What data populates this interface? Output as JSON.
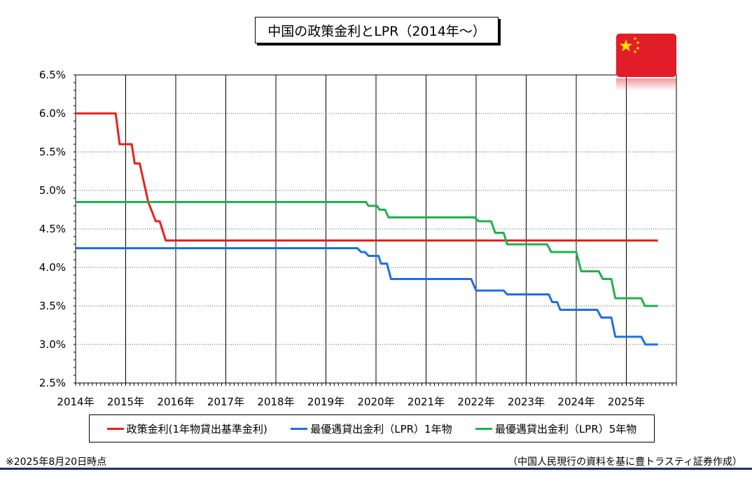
{
  "title": "中国の政策金利とLPR（2014年～）",
  "legend": [
    {
      "label": "政策金利(1年物貸出基準金利)",
      "color": "#e8211f"
    },
    {
      "label": "最優遇貸出金利（LPR）1年物",
      "color": "#1d6fe6"
    },
    {
      "label": "最優遇貸出金利（LPR）5年物",
      "color": "#1fb24e"
    }
  ],
  "note_left": "※2025年8月20日時点",
  "note_right": "（中国人民現行の資料を基に豊トラスティ証券作成）",
  "flag_icon": "china-flag-icon",
  "chart_data": {
    "type": "line",
    "title": "中国の政策金利とLPR（2014年～）",
    "xlabel": "",
    "ylabel": "",
    "xlim": [
      2014.0,
      2026.0
    ],
    "ylim": [
      2.5,
      6.5
    ],
    "y_ticks": [
      {
        "value": 6.5,
        "label": "6.5%"
      },
      {
        "value": 6.0,
        "label": "6.0%"
      },
      {
        "value": 5.5,
        "label": "5.5%"
      },
      {
        "value": 5.0,
        "label": "5.0%"
      },
      {
        "value": 4.5,
        "label": "4.5%"
      },
      {
        "value": 4.0,
        "label": "4.0%"
      },
      {
        "value": 3.5,
        "label": "3.5%"
      },
      {
        "value": 3.0,
        "label": "3.0%"
      },
      {
        "value": 2.5,
        "label": "2.5%"
      }
    ],
    "x_ticks": [
      {
        "value": 2014,
        "label": "2014年"
      },
      {
        "value": 2015,
        "label": "2015年"
      },
      {
        "value": 2016,
        "label": "2016年"
      },
      {
        "value": 2017,
        "label": "2017年"
      },
      {
        "value": 2018,
        "label": "2018年"
      },
      {
        "value": 2019,
        "label": "2019年"
      },
      {
        "value": 2020,
        "label": "2020年"
      },
      {
        "value": 2021,
        "label": "2021年"
      },
      {
        "value": 2022,
        "label": "2022年"
      },
      {
        "value": 2023,
        "label": "2023年"
      },
      {
        "value": 2024,
        "label": "2024年"
      },
      {
        "value": 2025,
        "label": "2025年"
      }
    ],
    "grid": true,
    "legend_position": "bottom",
    "series": [
      {
        "name": "政策金利(1年物貸出基準金利)",
        "color": "#e8211f",
        "points": [
          [
            2014.0,
            6.0
          ],
          [
            2014.8,
            6.0
          ],
          [
            2014.88,
            5.6
          ],
          [
            2015.12,
            5.6
          ],
          [
            2015.18,
            5.35
          ],
          [
            2015.28,
            5.35
          ],
          [
            2015.45,
            4.85
          ],
          [
            2015.6,
            4.6
          ],
          [
            2015.68,
            4.6
          ],
          [
            2015.8,
            4.35
          ],
          [
            2025.63,
            4.35
          ]
        ]
      },
      {
        "name": "最優遇貸出金利（LPR）1年物",
        "color": "#1d6fe6",
        "points": [
          [
            2014.0,
            4.25
          ],
          [
            2019.63,
            4.25
          ],
          [
            2019.7,
            4.2
          ],
          [
            2019.78,
            4.2
          ],
          [
            2019.85,
            4.15
          ],
          [
            2020.05,
            4.15
          ],
          [
            2020.1,
            4.05
          ],
          [
            2020.22,
            4.05
          ],
          [
            2020.3,
            3.85
          ],
          [
            2021.9,
            3.85
          ],
          [
            2022.0,
            3.7
          ],
          [
            2022.55,
            3.7
          ],
          [
            2022.62,
            3.65
          ],
          [
            2023.45,
            3.65
          ],
          [
            2023.52,
            3.55
          ],
          [
            2023.62,
            3.55
          ],
          [
            2023.68,
            3.45
          ],
          [
            2024.42,
            3.45
          ],
          [
            2024.5,
            3.35
          ],
          [
            2024.7,
            3.35
          ],
          [
            2024.78,
            3.1
          ],
          [
            2025.3,
            3.1
          ],
          [
            2025.38,
            3.0
          ],
          [
            2025.63,
            3.0
          ]
        ]
      },
      {
        "name": "最優遇貸出金利（LPR）5年物",
        "color": "#1fb24e",
        "points": [
          [
            2014.0,
            4.85
          ],
          [
            2019.8,
            4.85
          ],
          [
            2019.85,
            4.8
          ],
          [
            2020.02,
            4.8
          ],
          [
            2020.07,
            4.75
          ],
          [
            2020.18,
            4.75
          ],
          [
            2020.25,
            4.65
          ],
          [
            2021.97,
            4.65
          ],
          [
            2022.05,
            4.6
          ],
          [
            2022.3,
            4.6
          ],
          [
            2022.38,
            4.45
          ],
          [
            2022.55,
            4.45
          ],
          [
            2022.62,
            4.3
          ],
          [
            2023.42,
            4.3
          ],
          [
            2023.5,
            4.2
          ],
          [
            2024.0,
            4.2
          ],
          [
            2024.1,
            3.95
          ],
          [
            2024.45,
            3.95
          ],
          [
            2024.53,
            3.85
          ],
          [
            2024.7,
            3.85
          ],
          [
            2024.78,
            3.6
          ],
          [
            2025.3,
            3.6
          ],
          [
            2025.37,
            3.5
          ],
          [
            2025.63,
            3.5
          ]
        ]
      }
    ]
  }
}
